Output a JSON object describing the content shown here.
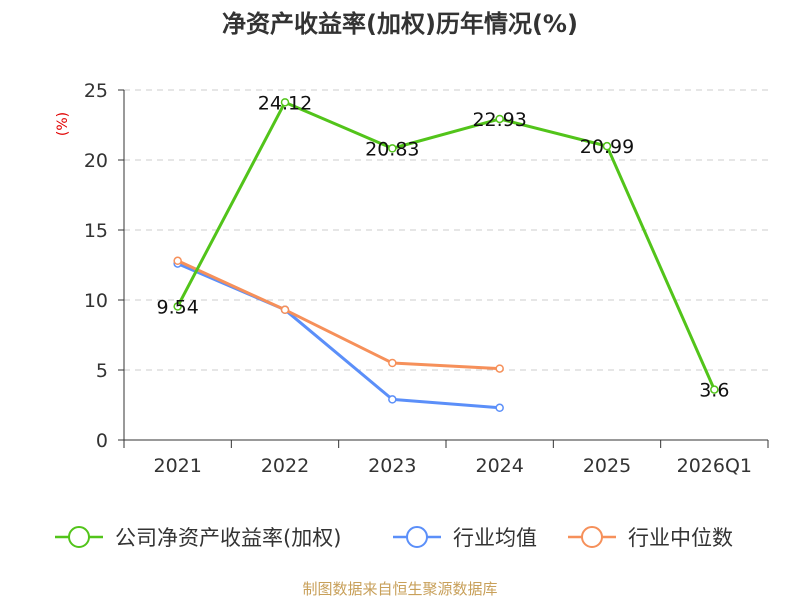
{
  "chart_data": {
    "type": "line",
    "title": "净资产收益率(加权)历年情况(%)",
    "ylabel": "(%)",
    "xlabel": "",
    "categories": [
      "2021",
      "2022",
      "2023",
      "2024",
      "2025",
      "2026Q1"
    ],
    "ylim": [
      0,
      25
    ],
    "yticks": [
      0,
      5,
      10,
      15,
      20,
      25
    ],
    "grid": true,
    "legend_position": "bottom",
    "series": [
      {
        "name": "公司净资产收益率(加权)",
        "color": "#52c41a",
        "values": [
          9.54,
          24.12,
          20.83,
          22.93,
          20.99,
          3.6
        ],
        "labels": [
          "9.54",
          "24.12",
          "20.83",
          "22.93",
          "20.99",
          "3.6"
        ]
      },
      {
        "name": "行业均值",
        "color": "#5b8ff9",
        "values": [
          12.6,
          9.3,
          2.9,
          2.3,
          null,
          null
        ]
      },
      {
        "name": "行业中位数",
        "color": "#f6905a",
        "values": [
          12.8,
          9.3,
          5.5,
          5.1,
          null,
          null
        ]
      }
    ],
    "source": "制图数据来自恒生聚源数据库"
  },
  "colors": {
    "axis": "#333333",
    "grid": "#cccccc",
    "ylabel": "#e00000",
    "source": "#c8a05a"
  }
}
